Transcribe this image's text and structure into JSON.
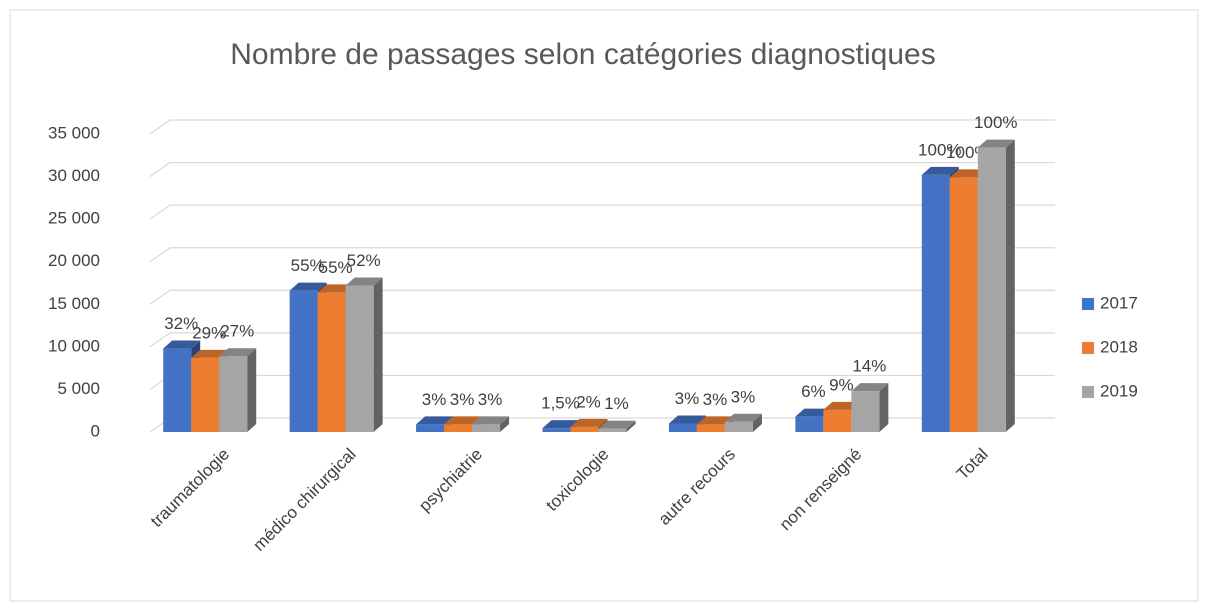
{
  "chart_data": {
    "type": "bar3d",
    "title": "Nombre de passages selon catégories diagnostiques",
    "categories": [
      "traumatologie",
      "médico chirurgical",
      "psychiatrie",
      "toxicologie",
      "autre recours",
      "non renseigné",
      "Total"
    ],
    "series": [
      {
        "name": "2017",
        "color": "#4472c4",
        "values": [
          9800,
          16600,
          900,
          450,
          1000,
          1800,
          30200
        ],
        "share_labels": [
          "32%",
          "55%",
          "3%",
          "1,5%",
          "3%",
          "6%",
          "100%"
        ]
      },
      {
        "name": "2018",
        "color": "#ed7d31",
        "values": [
          8700,
          16400,
          900,
          600,
          900,
          2600,
          29900
        ],
        "share_labels": [
          "29%",
          "55%",
          "3%",
          "2%",
          "3%",
          "9%",
          "100%"
        ]
      },
      {
        "name": "2019",
        "color": "#a5a5a5",
        "values": [
          8900,
          17200,
          900,
          400,
          1200,
          4800,
          33400
        ],
        "share_labels": [
          "27%",
          "52%",
          "3%",
          "1%",
          "3%",
          "14%",
          "100%"
        ]
      }
    ],
    "ylim": [
      0,
      35000
    ],
    "yticks": [
      0,
      {
        "value": 5000,
        "label": "5 000"
      },
      {
        "value": 10000,
        "label": "10 000"
      },
      {
        "value": 15000,
        "label": "15 000"
      },
      {
        "value": 20000,
        "label": "20 000"
      },
      {
        "value": 25000,
        "label": "25 000"
      },
      {
        "value": 30000,
        "label": "30 000"
      },
      {
        "value": 35000,
        "label": "35 000"
      }
    ],
    "grid": true,
    "legend": "right"
  }
}
